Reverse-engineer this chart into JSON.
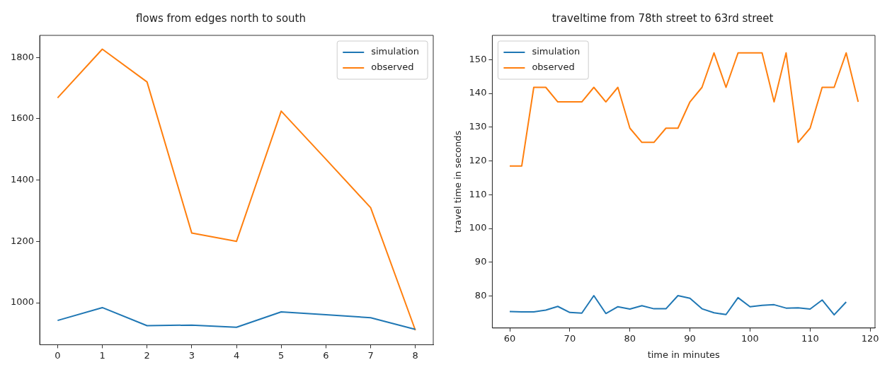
{
  "chart_data": [
    {
      "type": "line",
      "title": "flows from edges north to south",
      "x": [
        0,
        1,
        2,
        3,
        4,
        5,
        6,
        7,
        8
      ],
      "xlim": [
        -0.4,
        8.4
      ],
      "xticks": [
        0,
        1,
        2,
        3,
        4,
        5,
        6,
        7,
        8
      ],
      "ylim": [
        863,
        1872
      ],
      "yticks": [
        1000,
        1200,
        1400,
        1600,
        1800
      ],
      "grid": false,
      "legend": "top right",
      "series": [
        {
          "name": "simulation",
          "color": "#1f77b4",
          "values": [
            942,
            984,
            925,
            927,
            920,
            970,
            961,
            951,
            913
          ]
        },
        {
          "name": "observed",
          "color": "#ff7f0e",
          "values": [
            1668,
            1827,
            1720,
            1227,
            1200,
            1625,
            1468,
            1310,
            910
          ]
        }
      ]
    },
    {
      "type": "line",
      "title": "traveltime from 78th street to 63rd street",
      "xlabel": "time in minutes",
      "ylabel": "travel time in seconds",
      "xlim": [
        57.1,
        120.8
      ],
      "xticks": [
        60,
        70,
        80,
        90,
        100,
        110,
        120
      ],
      "ylim": [
        70.5,
        157.2
      ],
      "yticks": [
        80,
        90,
        100,
        110,
        120,
        130,
        140,
        150
      ],
      "grid": false,
      "legend": "top left",
      "series": [
        {
          "name": "simulation",
          "color": "#1f77b4",
          "x": [
            60,
            62,
            64,
            66,
            68,
            70,
            72,
            74,
            76,
            78,
            80,
            82,
            84,
            86,
            88,
            90,
            92,
            94,
            96,
            98,
            100,
            102,
            104,
            106,
            108,
            110,
            112,
            114,
            116
          ],
          "values": [
            75.4,
            75.3,
            75.3,
            75.8,
            76.9,
            75.1,
            74.9,
            80.1,
            74.8,
            76.8,
            76.1,
            77.1,
            76.2,
            76.2,
            80.1,
            79.3,
            76.2,
            75.0,
            74.5,
            79.5,
            76.8,
            77.2,
            77.4,
            76.4,
            76.5,
            76.1,
            78.8,
            74.4,
            78.2
          ]
        },
        {
          "name": "observed",
          "color": "#ff7f0e",
          "x": [
            60,
            62,
            64,
            66,
            68,
            70,
            72,
            74,
            76,
            78,
            80,
            82,
            84,
            86,
            88,
            90,
            92,
            94,
            96,
            98,
            100,
            102,
            104,
            106,
            108,
            110,
            112,
            114,
            116,
            118
          ],
          "values": [
            118.5,
            118.5,
            141.8,
            141.8,
            137.5,
            137.5,
            137.5,
            141.8,
            137.5,
            141.8,
            129.7,
            125.5,
            125.5,
            129.7,
            129.7,
            137.5,
            141.8,
            152,
            141.8,
            152,
            152,
            152,
            137.5,
            152,
            125.5,
            129.7,
            141.8,
            141.8,
            152,
            137.5
          ]
        }
      ]
    }
  ]
}
